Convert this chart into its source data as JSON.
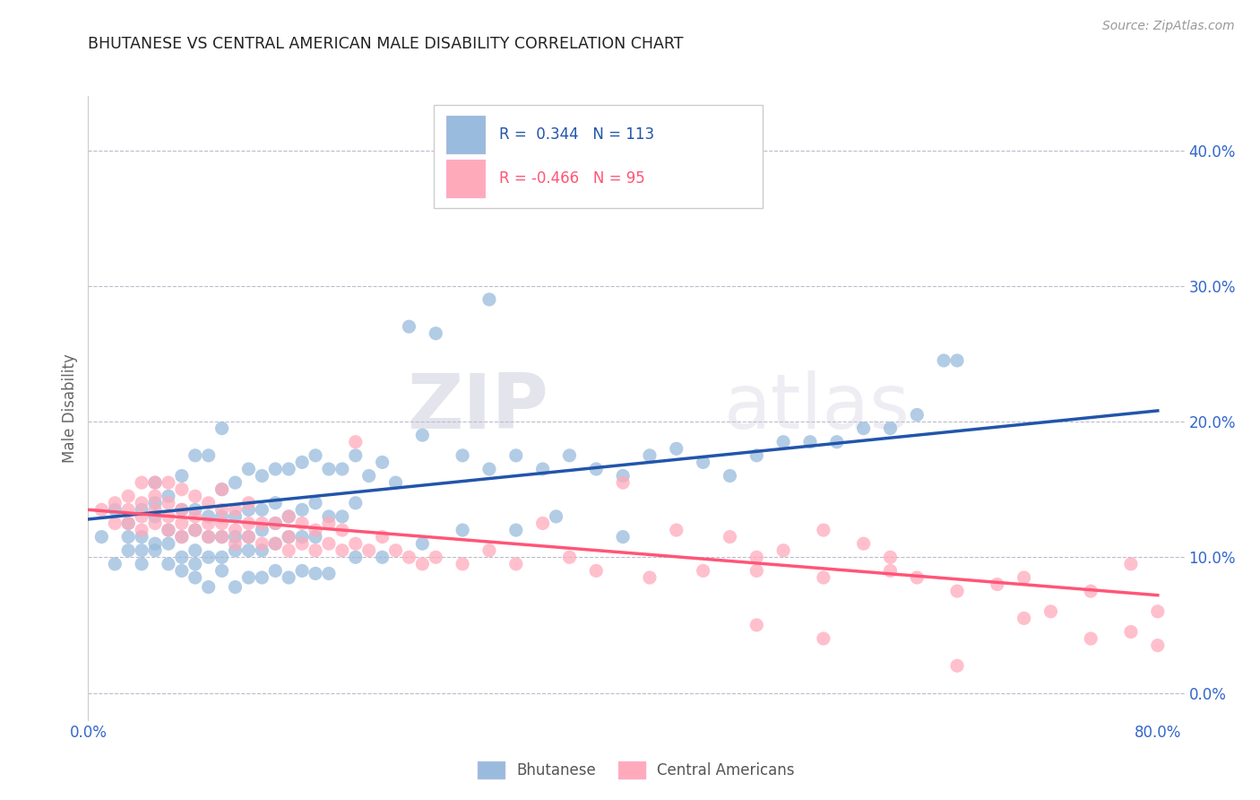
{
  "title": "BHUTANESE VS CENTRAL AMERICAN MALE DISABILITY CORRELATION CHART",
  "source": "Source: ZipAtlas.com",
  "ylabel": "Male Disability",
  "xlim": [
    0.0,
    0.82
  ],
  "ylim": [
    -0.02,
    0.44
  ],
  "blue_R": 0.344,
  "blue_N": 113,
  "pink_R": -0.466,
  "pink_N": 95,
  "blue_color": "#99BBDD",
  "pink_color": "#FFAABB",
  "blue_line_color": "#2255AA",
  "pink_line_color": "#FF5577",
  "legend_label_blue": "Bhutanese",
  "legend_label_pink": "Central Americans",
  "watermark_zip": "ZIP",
  "watermark_atlas": "atlas",
  "blue_line_x0": 0.0,
  "blue_line_y0": 0.128,
  "blue_line_x1": 0.8,
  "blue_line_y1": 0.208,
  "pink_line_x0": 0.0,
  "pink_line_y0": 0.135,
  "pink_line_x1": 0.8,
  "pink_line_y1": 0.072,
  "xtick_positions": [
    0.0,
    0.8
  ],
  "xtick_labels": [
    "0.0%",
    "80.0%"
  ],
  "ytick_positions": [
    0.0,
    0.1,
    0.2,
    0.3,
    0.4
  ],
  "ytick_labels": [
    "0.0%",
    "10.0%",
    "20.0%",
    "30.0%",
    "40.0%"
  ],
  "blue_scatter_x": [
    0.01,
    0.02,
    0.02,
    0.03,
    0.03,
    0.03,
    0.04,
    0.04,
    0.04,
    0.04,
    0.05,
    0.05,
    0.05,
    0.05,
    0.05,
    0.06,
    0.06,
    0.06,
    0.06,
    0.07,
    0.07,
    0.07,
    0.07,
    0.08,
    0.08,
    0.08,
    0.08,
    0.08,
    0.09,
    0.09,
    0.09,
    0.09,
    0.1,
    0.1,
    0.1,
    0.1,
    0.1,
    0.11,
    0.11,
    0.11,
    0.11,
    0.12,
    0.12,
    0.12,
    0.12,
    0.13,
    0.13,
    0.13,
    0.13,
    0.14,
    0.14,
    0.14,
    0.14,
    0.15,
    0.15,
    0.15,
    0.16,
    0.16,
    0.16,
    0.17,
    0.17,
    0.17,
    0.18,
    0.18,
    0.19,
    0.19,
    0.2,
    0.2,
    0.21,
    0.22,
    0.23,
    0.24,
    0.25,
    0.26,
    0.28,
    0.3,
    0.3,
    0.32,
    0.34,
    0.36,
    0.38,
    0.4,
    0.42,
    0.44,
    0.46,
    0.48,
    0.5,
    0.52,
    0.54,
    0.56,
    0.58,
    0.6,
    0.62,
    0.64,
    0.07,
    0.08,
    0.09,
    0.1,
    0.11,
    0.12,
    0.13,
    0.14,
    0.15,
    0.16,
    0.17,
    0.18,
    0.2,
    0.22,
    0.25,
    0.28,
    0.32,
    0.35,
    0.4,
    0.65
  ],
  "blue_scatter_y": [
    0.115,
    0.095,
    0.135,
    0.105,
    0.115,
    0.125,
    0.095,
    0.105,
    0.115,
    0.135,
    0.105,
    0.11,
    0.13,
    0.14,
    0.155,
    0.095,
    0.11,
    0.12,
    0.145,
    0.1,
    0.115,
    0.135,
    0.16,
    0.095,
    0.105,
    0.12,
    0.135,
    0.175,
    0.1,
    0.115,
    0.13,
    0.175,
    0.1,
    0.115,
    0.13,
    0.15,
    0.195,
    0.105,
    0.115,
    0.13,
    0.155,
    0.105,
    0.115,
    0.135,
    0.165,
    0.105,
    0.12,
    0.135,
    0.16,
    0.11,
    0.125,
    0.14,
    0.165,
    0.115,
    0.13,
    0.165,
    0.115,
    0.135,
    0.17,
    0.115,
    0.14,
    0.175,
    0.13,
    0.165,
    0.13,
    0.165,
    0.14,
    0.175,
    0.16,
    0.17,
    0.155,
    0.27,
    0.19,
    0.265,
    0.175,
    0.29,
    0.165,
    0.175,
    0.165,
    0.175,
    0.165,
    0.16,
    0.175,
    0.18,
    0.17,
    0.16,
    0.175,
    0.185,
    0.185,
    0.185,
    0.195,
    0.195,
    0.205,
    0.245,
    0.09,
    0.085,
    0.078,
    0.09,
    0.078,
    0.085,
    0.085,
    0.09,
    0.085,
    0.09,
    0.088,
    0.088,
    0.1,
    0.1,
    0.11,
    0.12,
    0.12,
    0.13,
    0.115,
    0.245
  ],
  "pink_scatter_x": [
    0.01,
    0.02,
    0.02,
    0.03,
    0.03,
    0.03,
    0.04,
    0.04,
    0.04,
    0.04,
    0.05,
    0.05,
    0.05,
    0.05,
    0.06,
    0.06,
    0.06,
    0.06,
    0.07,
    0.07,
    0.07,
    0.07,
    0.08,
    0.08,
    0.08,
    0.09,
    0.09,
    0.09,
    0.1,
    0.1,
    0.1,
    0.1,
    0.11,
    0.11,
    0.11,
    0.12,
    0.12,
    0.12,
    0.13,
    0.13,
    0.14,
    0.14,
    0.15,
    0.15,
    0.15,
    0.16,
    0.16,
    0.17,
    0.17,
    0.18,
    0.18,
    0.19,
    0.19,
    0.2,
    0.2,
    0.21,
    0.22,
    0.23,
    0.24,
    0.25,
    0.26,
    0.28,
    0.3,
    0.32,
    0.34,
    0.36,
    0.38,
    0.4,
    0.42,
    0.44,
    0.46,
    0.48,
    0.5,
    0.52,
    0.55,
    0.58,
    0.6,
    0.62,
    0.65,
    0.68,
    0.7,
    0.72,
    0.75,
    0.78,
    0.8,
    0.5,
    0.55,
    0.6,
    0.65,
    0.7,
    0.75,
    0.78,
    0.8,
    0.5,
    0.55
  ],
  "pink_scatter_y": [
    0.135,
    0.125,
    0.14,
    0.125,
    0.135,
    0.145,
    0.12,
    0.13,
    0.14,
    0.155,
    0.125,
    0.135,
    0.145,
    0.155,
    0.12,
    0.13,
    0.14,
    0.155,
    0.115,
    0.125,
    0.135,
    0.15,
    0.12,
    0.13,
    0.145,
    0.115,
    0.125,
    0.14,
    0.115,
    0.125,
    0.135,
    0.15,
    0.11,
    0.12,
    0.135,
    0.115,
    0.125,
    0.14,
    0.11,
    0.125,
    0.11,
    0.125,
    0.105,
    0.115,
    0.13,
    0.11,
    0.125,
    0.105,
    0.12,
    0.11,
    0.125,
    0.105,
    0.12,
    0.11,
    0.185,
    0.105,
    0.115,
    0.105,
    0.1,
    0.095,
    0.1,
    0.095,
    0.105,
    0.095,
    0.125,
    0.1,
    0.09,
    0.155,
    0.085,
    0.12,
    0.09,
    0.115,
    0.09,
    0.105,
    0.085,
    0.11,
    0.1,
    0.085,
    0.075,
    0.08,
    0.085,
    0.06,
    0.075,
    0.045,
    0.06,
    0.1,
    0.12,
    0.09,
    0.02,
    0.055,
    0.04,
    0.095,
    0.035,
    0.05,
    0.04
  ]
}
